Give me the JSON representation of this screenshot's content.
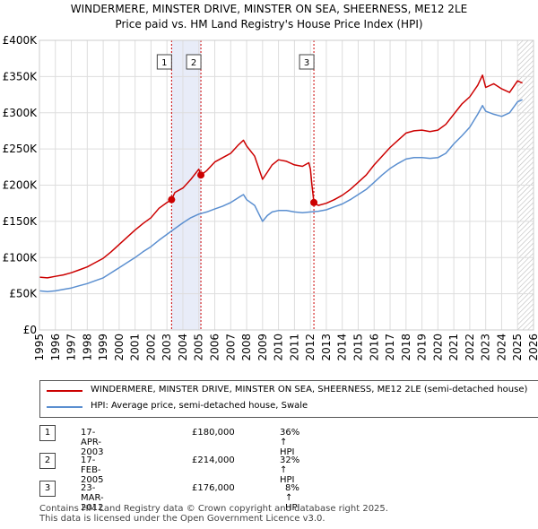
{
  "title_line1": "WINDERMERE, MINSTER DRIVE, MINSTER ON SEA, SHEERNESS, ME12 2LE",
  "title_line2": "Price paid vs. HM Land Registry's House Price Index (HPI)",
  "colors": {
    "property": "#cc0000",
    "hpi": "#5b8fd0",
    "shade": "#e8ecf8",
    "marker_line": "#cc0000"
  },
  "chart_data": {
    "type": "line",
    "ylim": [
      0,
      400000
    ],
    "xlim": [
      1995,
      2026
    ],
    "y_ticks": [
      {
        "value": 0,
        "label": "£0"
      },
      {
        "value": 50000,
        "label": "£50K"
      },
      {
        "value": 100000,
        "label": "£100K"
      },
      {
        "value": 150000,
        "label": "£150K"
      },
      {
        "value": 200000,
        "label": "£200K"
      },
      {
        "value": 250000,
        "label": "£250K"
      },
      {
        "value": 300000,
        "label": "£300K"
      },
      {
        "value": 350000,
        "label": "£350K"
      },
      {
        "value": 400000,
        "label": "£400K"
      }
    ],
    "x_ticks": [
      1995,
      1996,
      1997,
      1998,
      1999,
      2000,
      2001,
      2002,
      2003,
      2004,
      2005,
      2006,
      2007,
      2008,
      2009,
      2010,
      2011,
      2012,
      2013,
      2014,
      2015,
      2016,
      2017,
      2018,
      2019,
      2020,
      2021,
      2022,
      2023,
      2024,
      2025,
      2026
    ],
    "series": [
      {
        "name": "WINDERMERE, MINSTER DRIVE, MINSTER ON SEA, SHEERNESS, ME12 2LE (semi-detached house)",
        "color": "#cc0000",
        "x": [
          1995.0,
          1995.5,
          1996.0,
          1996.5,
          1997.0,
          1997.5,
          1998.0,
          1998.5,
          1999.0,
          1999.5,
          2000.0,
          2000.5,
          2001.0,
          2001.5,
          2002.0,
          2002.5,
          2003.0,
          2003.29,
          2003.5,
          2004.0,
          2004.5,
          2005.0,
          2005.13,
          2005.5,
          2006.0,
          2006.5,
          2007.0,
          2007.5,
          2007.8,
          2008.0,
          2008.5,
          2009.0,
          2009.3,
          2009.6,
          2010.0,
          2010.5,
          2011.0,
          2011.5,
          2011.9,
          2012.0,
          2012.1,
          2012.22,
          2012.5,
          2013.0,
          2013.5,
          2014.0,
          2014.5,
          2015.0,
          2015.5,
          2016.0,
          2016.5,
          2017.0,
          2017.5,
          2018.0,
          2018.5,
          2019.0,
          2019.5,
          2020.0,
          2020.5,
          2021.0,
          2021.5,
          2022.0,
          2022.5,
          2022.8,
          2023.0,
          2023.5,
          2024.0,
          2024.5,
          2025.0,
          2025.3
        ],
        "y": [
          73000,
          72000,
          74000,
          76000,
          79000,
          83000,
          87000,
          93000,
          99000,
          108000,
          118000,
          128000,
          138000,
          147000,
          155000,
          168000,
          176000,
          180000,
          190000,
          196000,
          208000,
          222000,
          214000,
          220000,
          232000,
          238000,
          244000,
          256000,
          262000,
          254000,
          240000,
          208000,
          218000,
          228000,
          235000,
          233000,
          228000,
          226000,
          231000,
          222000,
          200000,
          176000,
          172000,
          175000,
          180000,
          186000,
          194000,
          204000,
          214000,
          228000,
          240000,
          252000,
          262000,
          272000,
          275000,
          276000,
          274000,
          276000,
          284000,
          298000,
          312000,
          322000,
          338000,
          352000,
          335000,
          340000,
          333000,
          328000,
          344000,
          341000
        ]
      },
      {
        "name": "HPI: Average price, semi-detached house, Swale",
        "color": "#5b8fd0",
        "x": [
          1995.0,
          1995.5,
          1996.0,
          1996.5,
          1997.0,
          1997.5,
          1998.0,
          1998.5,
          1999.0,
          1999.5,
          2000.0,
          2000.5,
          2001.0,
          2001.5,
          2002.0,
          2002.5,
          2003.0,
          2003.5,
          2004.0,
          2004.5,
          2005.0,
          2005.5,
          2006.0,
          2006.5,
          2007.0,
          2007.5,
          2007.8,
          2008.0,
          2008.5,
          2009.0,
          2009.3,
          2009.6,
          2010.0,
          2010.5,
          2011.0,
          2011.5,
          2012.0,
          2012.5,
          2013.0,
          2013.5,
          2014.0,
          2014.5,
          2015.0,
          2015.5,
          2016.0,
          2016.5,
          2017.0,
          2017.5,
          2018.0,
          2018.5,
          2019.0,
          2019.5,
          2020.0,
          2020.5,
          2021.0,
          2021.5,
          2022.0,
          2022.5,
          2022.8,
          2023.0,
          2023.5,
          2024.0,
          2024.5,
          2025.0,
          2025.3
        ],
        "y": [
          54000,
          53000,
          54000,
          56000,
          58000,
          61000,
          64000,
          68000,
          72000,
          79000,
          86000,
          93000,
          100000,
          108000,
          115000,
          124000,
          132000,
          140000,
          148000,
          155000,
          160000,
          163000,
          167000,
          171000,
          176000,
          183000,
          187000,
          180000,
          172000,
          150000,
          158000,
          163000,
          165000,
          165000,
          163000,
          162000,
          163000,
          164000,
          166000,
          170000,
          174000,
          180000,
          187000,
          194000,
          204000,
          214000,
          223000,
          230000,
          236000,
          238000,
          238000,
          237000,
          238000,
          244000,
          257000,
          268000,
          280000,
          298000,
          310000,
          302000,
          298000,
          295000,
          300000,
          315000,
          318000
        ]
      }
    ],
    "sales": [
      {
        "label": "1",
        "date": "17-APR-2003",
        "x": 2003.29,
        "price": "£180,000",
        "price_value": 180000,
        "hpi": "36% ↑ HPI"
      },
      {
        "label": "2",
        "date": "17-FEB-2005",
        "x": 2005.13,
        "price": "£214,000",
        "price_value": 214000,
        "hpi": "32% ↑ HPI"
      },
      {
        "label": "3",
        "date": "23-MAR-2012",
        "x": 2012.22,
        "price": "£176,000",
        "price_value": 176000,
        "hpi": "8% ↑ HPI"
      }
    ],
    "shaded_range": [
      2003.29,
      2005.13
    ],
    "hatched_from": 2025.0
  },
  "legend": {
    "property_label": "WINDERMERE, MINSTER DRIVE, MINSTER ON SEA, SHEERNESS, ME12 2LE (semi-detached house)",
    "hpi_label": "HPI: Average price, semi-detached house, Swale"
  },
  "footer": {
    "line1": "Contains HM Land Registry data © Crown copyright and database right 2025.",
    "line2": "This data is licensed under the Open Government Licence v3.0."
  }
}
